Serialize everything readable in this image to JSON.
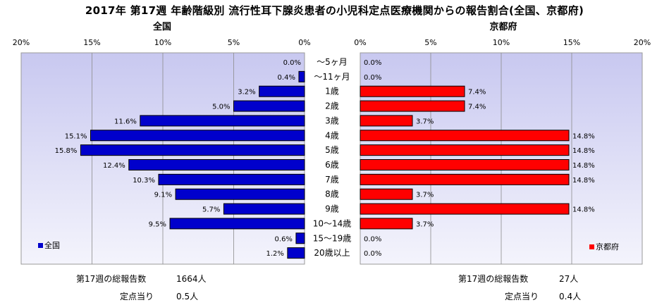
{
  "title": "2017年 第17週 年齢階級別 流行性耳下腺炎患者の小児科定点医療機関からの報告割合(全国、京都府)",
  "colors": {
    "national": "#0000cc",
    "kyoto": "#ff0000",
    "plot_bg_top": "#c8c8f0",
    "plot_bg_bottom": "#f4f4fc"
  },
  "chart_data": {
    "type": "bar",
    "orientation": "horizontal-back-to-back",
    "categories": [
      "〜5ヶ月",
      "〜11ヶ月",
      "1歳",
      "2歳",
      "3歳",
      "4歳",
      "5歳",
      "6歳",
      "7歳",
      "8歳",
      "9歳",
      "10〜14歳",
      "15〜19歳",
      "20歳以上"
    ],
    "series": [
      {
        "name": "全国",
        "panel_title": "全国",
        "values": [
          0.0,
          0.4,
          3.2,
          5.0,
          11.6,
          15.1,
          15.8,
          12.4,
          10.3,
          9.1,
          5.7,
          9.5,
          0.6,
          1.2
        ],
        "labels": [
          "0.0%",
          "0.4%",
          "3.2%",
          "5.0%",
          "11.6%",
          "15.1%",
          "15.8%",
          "12.4%",
          "10.3%",
          "9.1%",
          "5.7%",
          "9.5%",
          "0.6%",
          "1.2%"
        ]
      },
      {
        "name": "京都府",
        "panel_title": "京都府",
        "values": [
          0.0,
          0.0,
          7.4,
          7.4,
          3.7,
          14.8,
          14.8,
          14.8,
          14.8,
          3.7,
          14.8,
          3.7,
          0.0,
          0.0
        ],
        "labels": [
          "0.0%",
          "0.0%",
          "7.4%",
          "7.4%",
          "3.7%",
          "14.8%",
          "14.8%",
          "14.8%",
          "14.8%",
          "3.7%",
          "14.8%",
          "3.7%",
          "0.0%",
          "0.0%"
        ]
      }
    ],
    "xlim": [
      0,
      20
    ],
    "left_ticks": [
      "20%",
      "15%",
      "10%",
      "5%",
      "0%"
    ],
    "right_ticks": [
      "0%",
      "5%",
      "10%",
      "15%",
      "20%"
    ],
    "legend_position": "bottom-left / bottom-right"
  },
  "stats": {
    "national_total_label": "第17週の総報告数",
    "national_total_value": "1664人",
    "national_per_label": "定点当り",
    "national_per_value": "0.5人",
    "kyoto_total_label": "第17週の総報告数",
    "kyoto_total_value": "27人",
    "kyoto_per_label": "定点当り",
    "kyoto_per_value": "0.4人"
  }
}
